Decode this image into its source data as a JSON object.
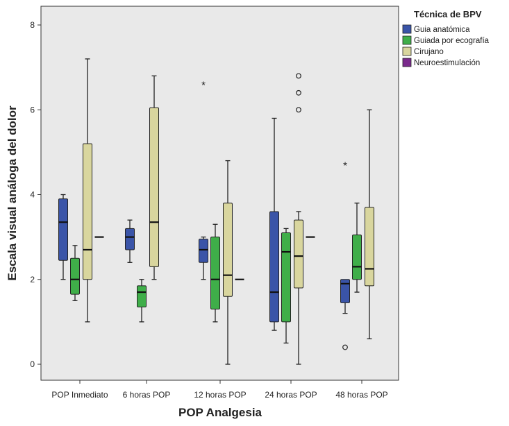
{
  "chart_data": {
    "type": "boxplot",
    "xlabel": "POP Analgesia",
    "ylabel": "Escala visual análoga del dolor",
    "categories": [
      "POP Inmediato",
      "6 horas POP",
      "12 horas POP",
      "24 horas POP",
      "48 horas POP"
    ],
    "ylim": [
      -0.3,
      8.5
    ],
    "yticks": [
      0,
      2,
      4,
      6,
      8
    ],
    "grid": false,
    "legend": {
      "title": "Técnica de BPV",
      "placement": "top-right-outside",
      "entries": [
        "Guia anatómica",
        "Guiada por ecografía",
        "Cirujano",
        "Neuroestimulación"
      ]
    },
    "series": [
      {
        "name": "Guia anatómica",
        "color": "#3a54a8",
        "boxes": [
          {
            "category": "POP Inmediato",
            "min": 2.0,
            "q1": 2.45,
            "median": 3.35,
            "q3": 3.9,
            "max": 4.0,
            "outliers": [],
            "extremes": []
          },
          {
            "category": "6 horas POP",
            "min": 2.4,
            "q1": 2.7,
            "median": 3.0,
            "q3": 3.2,
            "max": 3.4,
            "outliers": [],
            "extremes": []
          },
          {
            "category": "12 horas POP",
            "min": 2.0,
            "q1": 2.4,
            "median": 2.7,
            "q3": 2.95,
            "max": 3.0,
            "outliers": [],
            "extremes": [
              6.6
            ]
          },
          {
            "category": "24 horas POP",
            "min": 0.8,
            "q1": 1.0,
            "median": 1.7,
            "q3": 3.6,
            "max": 5.8,
            "outliers": [],
            "extremes": []
          },
          {
            "category": "48 horas POP",
            "min": 1.2,
            "q1": 1.45,
            "median": 1.9,
            "q3": 2.0,
            "max": 2.0,
            "outliers": [
              0.4
            ],
            "extremes": [
              4.7
            ]
          }
        ]
      },
      {
        "name": "Guiada por ecografía",
        "color": "#3fae49",
        "boxes": [
          {
            "category": "POP Inmediato",
            "min": 1.5,
            "q1": 1.65,
            "median": 2.0,
            "q3": 2.5,
            "max": 2.8,
            "outliers": [],
            "extremes": []
          },
          {
            "category": "6 horas POP",
            "min": 1.0,
            "q1": 1.35,
            "median": 1.7,
            "q3": 1.85,
            "max": 2.0,
            "outliers": [],
            "extremes": []
          },
          {
            "category": "12 horas POP",
            "min": 1.0,
            "q1": 1.3,
            "median": 2.0,
            "q3": 3.0,
            "max": 3.3,
            "outliers": [],
            "extremes": []
          },
          {
            "category": "24 horas POP",
            "min": 0.5,
            "q1": 1.0,
            "median": 2.65,
            "q3": 3.1,
            "max": 3.2,
            "outliers": [],
            "extremes": []
          },
          {
            "category": "48 horas POP",
            "min": 1.7,
            "q1": 2.0,
            "median": 2.3,
            "q3": 3.05,
            "max": 3.8,
            "outliers": [],
            "extremes": []
          }
        ]
      },
      {
        "name": "Cirujano",
        "color": "#d9d69e",
        "boxes": [
          {
            "category": "POP Inmediato",
            "min": 1.0,
            "q1": 2.0,
            "median": 2.7,
            "q3": 5.2,
            "max": 7.2,
            "outliers": [],
            "extremes": []
          },
          {
            "category": "6 horas POP",
            "min": 2.0,
            "q1": 2.3,
            "median": 3.35,
            "q3": 6.05,
            "max": 6.8,
            "outliers": [],
            "extremes": []
          },
          {
            "category": "12 horas POP",
            "min": 0.0,
            "q1": 1.6,
            "median": 2.1,
            "q3": 3.8,
            "max": 4.8,
            "outliers": [],
            "extremes": []
          },
          {
            "category": "24 horas POP",
            "min": 0.0,
            "q1": 1.8,
            "median": 2.55,
            "q3": 3.4,
            "max": 3.6,
            "outliers": [
              6.0,
              6.4,
              6.8
            ],
            "extremes": []
          },
          {
            "category": "48 horas POP",
            "min": 0.6,
            "q1": 1.85,
            "median": 2.25,
            "q3": 3.7,
            "max": 6.0,
            "outliers": [],
            "extremes": []
          }
        ]
      },
      {
        "name": "Neuroestimulación",
        "color": "#7a2a8c",
        "boxes": [
          {
            "category": "POP Inmediato",
            "min": 3.0,
            "q1": 3.0,
            "median": 3.0,
            "q3": 3.0,
            "max": 3.0,
            "outliers": [],
            "extremes": []
          },
          {
            "category": "12 horas POP",
            "min": 2.0,
            "q1": 2.0,
            "median": 2.0,
            "q3": 2.0,
            "max": 2.0,
            "outliers": [],
            "extremes": []
          },
          {
            "category": "24 horas POP",
            "min": 3.0,
            "q1": 3.0,
            "median": 3.0,
            "q3": 3.0,
            "max": 3.0,
            "outliers": [],
            "extremes": []
          }
        ]
      }
    ],
    "plot_background": "#e9e9e9"
  }
}
